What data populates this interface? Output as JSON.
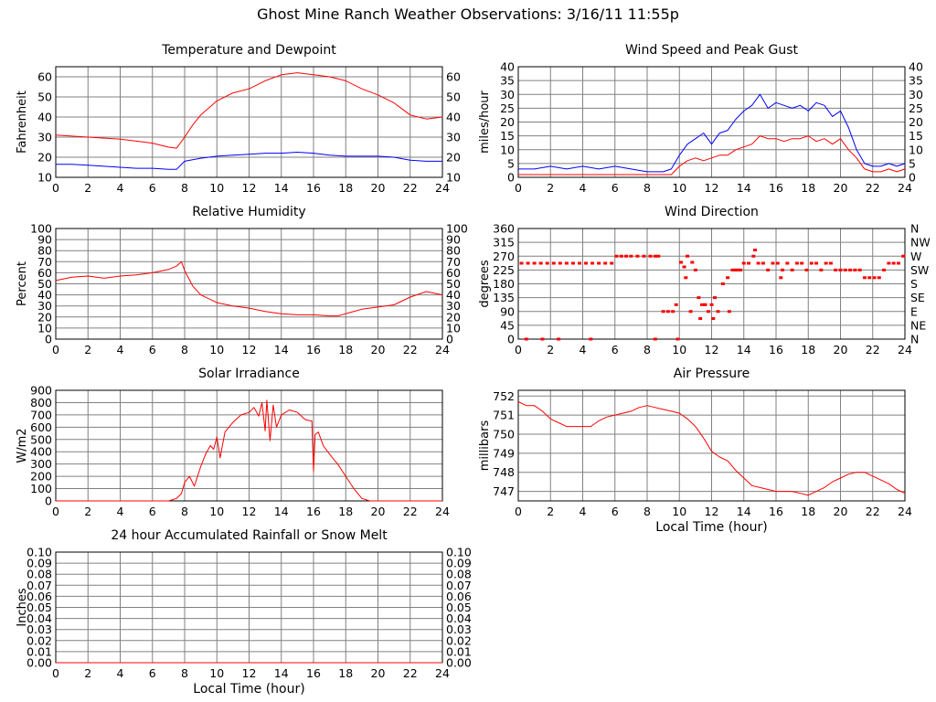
{
  "page_title": "Ghost Mine Ranch Weather Observations: 3/16/11 11:55p",
  "chart_data": [
    {
      "id": "temperature",
      "type": "line",
      "title": "Temperature and Dewpoint",
      "ylabel": "Fahrenheit",
      "xlabel": "",
      "xlim": [
        0,
        24
      ],
      "ylim": [
        10,
        65
      ],
      "xticks": [
        0,
        2,
        4,
        6,
        8,
        10,
        12,
        14,
        16,
        18,
        20,
        22,
        24
      ],
      "yticks": [
        10,
        20,
        30,
        40,
        50,
        60
      ],
      "ytick_labels": [
        "10",
        "20",
        "30",
        "40",
        "50",
        "60"
      ],
      "right_axis_labels": true,
      "grid": true,
      "series": [
        {
          "color": "#ff0000",
          "x": [
            0,
            1,
            2,
            3,
            4,
            5,
            6,
            7,
            7.5,
            8,
            8.5,
            9,
            10,
            11,
            12,
            13,
            14,
            15,
            16,
            17,
            18,
            19,
            20,
            21,
            21.5,
            22,
            23,
            24
          ],
          "y": [
            31,
            30.5,
            30,
            29.5,
            29,
            28,
            27,
            25,
            24.5,
            30,
            36,
            41,
            48,
            52,
            54,
            58,
            61,
            62,
            61,
            60,
            58,
            54,
            51,
            47,
            44,
            41,
            39,
            40
          ]
        },
        {
          "color": "#0000ff",
          "x": [
            0,
            1,
            2,
            3,
            4,
            5,
            6,
            7,
            7.5,
            8,
            9,
            10,
            11,
            12,
            13,
            14,
            15,
            16,
            17,
            18,
            19,
            20,
            21,
            22,
            23,
            24
          ],
          "y": [
            16.5,
            16.5,
            16,
            15.5,
            15,
            14.5,
            14.5,
            14,
            14,
            18,
            19.5,
            20.5,
            21,
            21.5,
            22,
            22,
            22.5,
            22,
            21,
            20.5,
            20.5,
            20.5,
            20,
            18.5,
            18,
            18
          ]
        }
      ]
    },
    {
      "id": "wind_speed",
      "type": "line",
      "title": "Wind Speed and Peak Gust",
      "ylabel": "miles/hour",
      "xlabel": "",
      "xlim": [
        0,
        24
      ],
      "ylim": [
        0,
        40
      ],
      "xticks": [
        0,
        2,
        4,
        6,
        8,
        10,
        12,
        14,
        16,
        18,
        20,
        22,
        24
      ],
      "yticks": [
        0,
        5,
        10,
        15,
        20,
        25,
        30,
        35,
        40
      ],
      "ytick_labels": [
        "0",
        "5",
        "10",
        "15",
        "20",
        "25",
        "30",
        "35",
        "40"
      ],
      "right_axis_labels": true,
      "grid": true,
      "series": [
        {
          "color": "#0000ff",
          "x": [
            0,
            1,
            2,
            3,
            4,
            5,
            6,
            7,
            8,
            9,
            9.5,
            10,
            10.5,
            11,
            11.5,
            12,
            12.5,
            13,
            13.5,
            14,
            14.5,
            15,
            15.5,
            16,
            16.5,
            17,
            17.5,
            18,
            18.5,
            19,
            19.5,
            20,
            20.5,
            21,
            21.5,
            22,
            22.5,
            23,
            23.5,
            24
          ],
          "y": [
            3,
            3,
            4,
            3,
            4,
            3,
            4,
            3,
            2,
            2,
            3,
            8,
            12,
            14,
            16,
            12,
            16,
            17,
            21,
            24,
            26,
            30,
            25,
            27,
            26,
            25,
            26,
            24,
            27,
            26,
            22,
            24,
            18,
            10,
            5,
            4,
            4,
            5,
            4,
            5
          ]
        },
        {
          "color": "#ff0000",
          "x": [
            0,
            1,
            2,
            3,
            4,
            5,
            6,
            7,
            8,
            9,
            9.5,
            10,
            10.5,
            11,
            11.5,
            12,
            12.5,
            13,
            13.5,
            14,
            14.5,
            15,
            15.5,
            16,
            16.5,
            17,
            17.5,
            18,
            18.5,
            19,
            19.5,
            20,
            20.5,
            21,
            21.5,
            22,
            22.5,
            23,
            23.5,
            24
          ],
          "y": [
            1,
            1,
            1,
            1,
            1,
            1,
            1,
            1,
            1,
            1,
            1,
            4,
            6,
            7,
            6,
            7,
            8,
            8,
            10,
            11,
            12,
            15,
            14,
            14,
            13,
            14,
            14,
            15,
            13,
            14,
            12,
            14,
            10,
            7,
            3,
            2,
            2,
            3,
            2,
            3
          ]
        }
      ]
    },
    {
      "id": "humidity",
      "type": "line",
      "title": "Relative Humidity",
      "ylabel": "Percent",
      "xlabel": "",
      "xlim": [
        0,
        24
      ],
      "ylim": [
        0,
        100
      ],
      "xticks": [
        0,
        2,
        4,
        6,
        8,
        10,
        12,
        14,
        16,
        18,
        20,
        22,
        24
      ],
      "yticks": [
        0,
        10,
        20,
        30,
        40,
        50,
        60,
        70,
        80,
        90,
        100
      ],
      "ytick_labels": [
        "0",
        "10",
        "20",
        "30",
        "40",
        "50",
        "60",
        "70",
        "80",
        "90",
        "100"
      ],
      "right_axis_labels": true,
      "grid": true,
      "series": [
        {
          "color": "#ff0000",
          "x": [
            0,
            1,
            2,
            3,
            4,
            5,
            6,
            7,
            7.5,
            7.8,
            8,
            8.5,
            9,
            10,
            11,
            12,
            13,
            14,
            15,
            16,
            17,
            17.5,
            18,
            19,
            20,
            21,
            22,
            23,
            24
          ],
          "y": [
            53,
            56,
            57,
            55,
            57,
            58,
            60,
            63,
            66,
            70,
            62,
            48,
            40,
            33,
            30,
            28,
            25,
            23,
            22,
            22,
            21,
            21,
            23,
            27,
            29,
            31,
            38,
            43,
            40
          ]
        }
      ]
    },
    {
      "id": "wind_direction",
      "type": "scatter",
      "title": "Wind Direction",
      "ylabel": "degrees",
      "xlabel": "",
      "xlim": [
        0,
        24
      ],
      "ylim": [
        0,
        360
      ],
      "xticks": [
        0,
        2,
        4,
        6,
        8,
        10,
        12,
        14,
        16,
        18,
        20,
        22,
        24
      ],
      "yticks": [
        0,
        45,
        90,
        135,
        180,
        225,
        270,
        315,
        360
      ],
      "ytick_labels": [
        "0",
        "45",
        "90",
        "135",
        "180",
        "225",
        "270",
        "315",
        "360"
      ],
      "right_tick_labels": [
        "N",
        "NE",
        "E",
        "SE",
        "S",
        "SW",
        "W",
        "NW",
        "N"
      ],
      "grid": true,
      "series": [
        {
          "color": "#ff0000",
          "x": [
            0.2,
            0.6,
            1.0,
            1.4,
            1.8,
            2.2,
            2.6,
            3.0,
            3.4,
            3.8,
            4.2,
            4.6,
            5.0,
            5.4,
            5.8,
            6.1,
            6.4,
            6.7,
            7.0,
            7.4,
            7.8,
            8.2,
            8.5,
            8.7,
            9.0,
            9.3,
            9.6,
            9.8,
            10.1,
            10.3,
            10.5,
            10.8,
            11.0,
            11.2,
            11.4,
            11.6,
            11.8,
            12.0,
            12.2,
            12.4,
            12.7,
            13.0,
            13.3,
            13.6,
            13.8,
            14.0,
            14.3,
            14.6,
            14.9,
            15.2,
            15.5,
            15.8,
            16.1,
            16.4,
            16.7,
            17.0,
            17.3,
            17.6,
            17.9,
            18.2,
            18.5,
            18.8,
            19.1,
            19.4,
            19.7,
            20.0,
            20.3,
            20.6,
            20.9,
            21.2,
            21.5,
            21.8,
            22.1,
            22.4,
            22.7,
            23.0,
            23.3,
            23.6,
            23.9,
            0.5,
            1.5,
            2.5,
            4.5,
            8.5,
            9.9,
            10.4,
            10.7,
            11.3,
            11.6,
            12.1,
            13.1,
            13.5,
            14.7,
            16.3
          ],
          "y": [
            247,
            247,
            247,
            247,
            247,
            247,
            247,
            247,
            247,
            247,
            247,
            247,
            247,
            247,
            247,
            270,
            270,
            270,
            270,
            270,
            270,
            270,
            270,
            270,
            90,
            90,
            90,
            112,
            250,
            235,
            270,
            250,
            225,
            135,
            112,
            112,
            90,
            112,
            135,
            90,
            180,
            200,
            225,
            225,
            225,
            247,
            247,
            270,
            247,
            247,
            225,
            247,
            247,
            225,
            247,
            225,
            247,
            247,
            225,
            247,
            247,
            225,
            247,
            247,
            225,
            225,
            225,
            225,
            225,
            225,
            200,
            200,
            200,
            200,
            225,
            247,
            247,
            247,
            270,
            0,
            0,
            0,
            0,
            0,
            0,
            200,
            90,
            67,
            112,
            67,
            90,
            225,
            290,
            200
          ]
        }
      ]
    },
    {
      "id": "solar",
      "type": "line",
      "title": "Solar Irradiance",
      "ylabel": "W/m2",
      "xlabel": "",
      "xlim": [
        0,
        24
      ],
      "ylim": [
        0,
        900
      ],
      "xticks": [
        0,
        2,
        4,
        6,
        8,
        10,
        12,
        14,
        16,
        18,
        20,
        22,
        24
      ],
      "yticks": [
        0,
        100,
        200,
        300,
        400,
        500,
        600,
        700,
        800,
        900
      ],
      "ytick_labels": [
        "0",
        "100",
        "200",
        "300",
        "400",
        "500",
        "600",
        "700",
        "800",
        "900"
      ],
      "right_axis_labels": false,
      "grid": true,
      "series": [
        {
          "color": "#ff0000",
          "x": [
            0,
            6,
            7,
            7.5,
            7.8,
            8,
            8.3,
            8.6,
            9,
            9.3,
            9.6,
            9.8,
            10,
            10.2,
            10.5,
            11,
            11.5,
            12,
            12.3,
            12.6,
            12.8,
            13,
            13.1,
            13.3,
            13.5,
            13.7,
            14,
            14.5,
            15,
            15.5,
            15.9,
            16.0,
            16.1,
            16.3,
            16.6,
            17,
            17.5,
            18,
            18.5,
            19,
            19.5,
            20,
            24
          ],
          "y": [
            0,
            0,
            0,
            20,
            60,
            150,
            200,
            120,
            280,
            380,
            450,
            420,
            520,
            350,
            560,
            640,
            700,
            720,
            760,
            690,
            800,
            570,
            820,
            490,
            780,
            600,
            700,
            740,
            720,
            660,
            650,
            240,
            540,
            560,
            450,
            380,
            300,
            200,
            100,
            20,
            0,
            0,
            0
          ]
        }
      ]
    },
    {
      "id": "pressure",
      "type": "line",
      "title": "Air Pressure",
      "ylabel": "millibars",
      "xlabel": "Local Time (hour)",
      "xlim": [
        0,
        24
      ],
      "ylim": [
        746.5,
        752.3
      ],
      "xticks": [
        0,
        2,
        4,
        6,
        8,
        10,
        12,
        14,
        16,
        18,
        20,
        22,
        24
      ],
      "yticks": [
        747,
        748,
        749,
        750,
        751,
        752
      ],
      "ytick_labels": [
        "747",
        "748",
        "749",
        "750",
        "751",
        "752"
      ],
      "right_axis_labels": false,
      "grid": true,
      "series": [
        {
          "color": "#ff0000",
          "x": [
            0,
            0.5,
            1,
            1.5,
            2,
            2.5,
            3,
            3.5,
            4,
            4.5,
            5,
            5.5,
            6,
            6.5,
            7,
            7.5,
            8,
            8.5,
            9,
            9.5,
            10,
            10.5,
            11,
            11.5,
            12,
            12.5,
            13,
            13.5,
            14,
            14.5,
            15,
            15.5,
            16,
            16.5,
            17,
            17.5,
            18,
            18.5,
            19,
            19.5,
            20,
            20.5,
            21,
            21.5,
            22,
            22.5,
            23,
            23.5,
            24
          ],
          "y": [
            751.7,
            751.5,
            751.5,
            751.2,
            750.8,
            750.6,
            750.4,
            750.4,
            750.4,
            750.4,
            750.7,
            750.9,
            751.0,
            751.1,
            751.2,
            751.4,
            751.5,
            751.4,
            751.3,
            751.2,
            751.1,
            750.8,
            750.4,
            749.8,
            749.1,
            748.8,
            748.6,
            748.1,
            747.7,
            747.3,
            747.2,
            747.1,
            747.0,
            747.0,
            747.0,
            746.9,
            746.8,
            747.0,
            747.2,
            747.5,
            747.7,
            747.9,
            748.0,
            748.0,
            747.8,
            747.6,
            747.4,
            747.1,
            746.9
          ]
        }
      ]
    },
    {
      "id": "rainfall",
      "type": "line",
      "title": "24 hour Accumulated Rainfall or Snow Melt",
      "ylabel": "Inches",
      "xlabel": "Local Time (hour)",
      "xlim": [
        0,
        24
      ],
      "ylim": [
        0,
        0.1
      ],
      "xticks": [
        0,
        2,
        4,
        6,
        8,
        10,
        12,
        14,
        16,
        18,
        20,
        22,
        24
      ],
      "yticks": [
        0,
        0.01,
        0.02,
        0.03,
        0.04,
        0.05,
        0.06,
        0.07,
        0.08,
        0.09,
        0.1
      ],
      "ytick_labels": [
        "0.00",
        "0.01",
        "0.02",
        "0.03",
        "0.04",
        "0.05",
        "0.06",
        "0.07",
        "0.08",
        "0.09",
        "0.10"
      ],
      "right_axis_labels": true,
      "grid": true,
      "series": [
        {
          "color": "#ff0000",
          "x": [
            0,
            24
          ],
          "y": [
            0,
            0
          ]
        }
      ]
    }
  ]
}
